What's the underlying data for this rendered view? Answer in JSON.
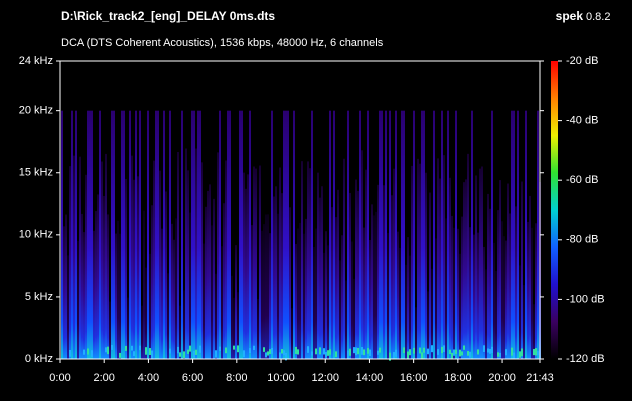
{
  "chart_data": {
    "type": "spectrogram",
    "title": "D:\\Rick_track2_[eng]_DELAY 0ms.dts",
    "app_name": "spek",
    "app_version": "0.8.2",
    "subtitle": "DCA (DTS Coherent Acoustics), 1536 kbps, 48000 Hz, 6 channels",
    "xlim": [
      0,
      1303
    ],
    "xticks": [
      {
        "value": 0,
        "label": "0:00"
      },
      {
        "value": 120,
        "label": "2:00"
      },
      {
        "value": 240,
        "label": "4:00"
      },
      {
        "value": 360,
        "label": "6:00"
      },
      {
        "value": 480,
        "label": "8:00"
      },
      {
        "value": 600,
        "label": "10:00"
      },
      {
        "value": 720,
        "label": "12:00"
      },
      {
        "value": 840,
        "label": "14:00"
      },
      {
        "value": 960,
        "label": "16:00"
      },
      {
        "value": 1080,
        "label": "18:00"
      },
      {
        "value": 1200,
        "label": "20:00"
      },
      {
        "value": 1303,
        "label": "21:43"
      }
    ],
    "ylim": [
      0,
      24
    ],
    "yticks": [
      {
        "value": 0,
        "label": "0 kHz"
      },
      {
        "value": 5,
        "label": "5 kHz"
      },
      {
        "value": 10,
        "label": "10 kHz"
      },
      {
        "value": 15,
        "label": "15 kHz"
      },
      {
        "value": 20,
        "label": "20 kHz"
      },
      {
        "value": 24,
        "label": "24 kHz"
      }
    ],
    "colorbar_lim": [
      -120,
      -20
    ],
    "colorbar_ticks": [
      {
        "value": -20,
        "label": "-20 dB"
      },
      {
        "value": -40,
        "label": "-40 dB"
      },
      {
        "value": -60,
        "label": "-60 dB"
      },
      {
        "value": -80,
        "label": "-80 dB"
      },
      {
        "value": -100,
        "label": "-100 dB"
      },
      {
        "value": -120,
        "label": "-120 dB"
      }
    ],
    "colormap": [
      "#000000",
      "#3a0060",
      "#2010d0",
      "#1060ff",
      "#00d0d0",
      "#30e030",
      "#f0f000",
      "#ff8000",
      "#ff0000"
    ]
  }
}
